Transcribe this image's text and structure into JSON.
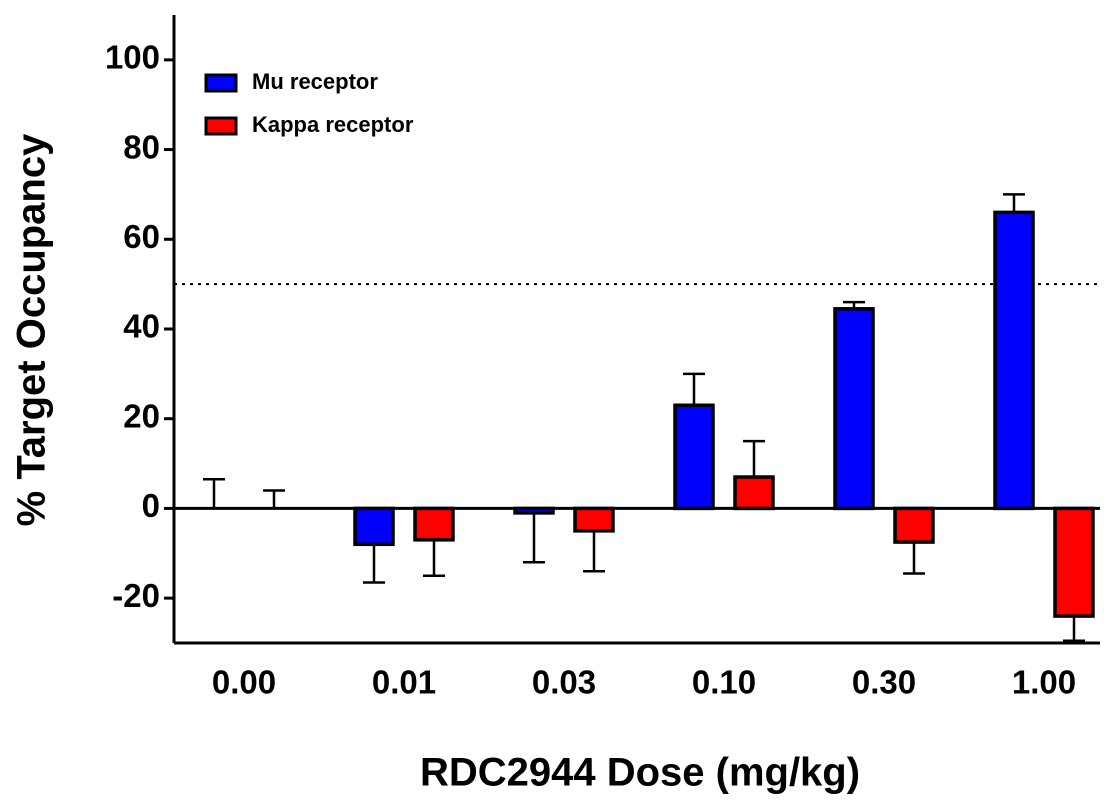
{
  "chart_data": {
    "type": "bar",
    "x_label": "RDC2944 Dose (mg/kg)",
    "y_label": "% Target Occupancy",
    "categories": [
      "0.00",
      "0.01",
      "0.03",
      "0.10",
      "0.30",
      "1.00"
    ],
    "series": [
      {
        "name": "Mu receptor",
        "color": "#0000ff",
        "values": [
          0,
          -8,
          -1,
          23,
          44.5,
          66
        ],
        "errors": [
          6.5,
          8.5,
          11,
          7,
          1.5,
          4
        ]
      },
      {
        "name": "Kappa receptor",
        "color": "#ff0000",
        "values": [
          0,
          -7,
          -5,
          7,
          -7.5,
          -24
        ],
        "errors": [
          4,
          8,
          9,
          8,
          7,
          5.5
        ]
      }
    ],
    "ylim": [
      -30,
      110
    ],
    "yticks": [
      -20,
      0,
      20,
      40,
      60,
      80,
      100
    ],
    "reference_line": 50,
    "legend": "upper left",
    "grid": false
  }
}
